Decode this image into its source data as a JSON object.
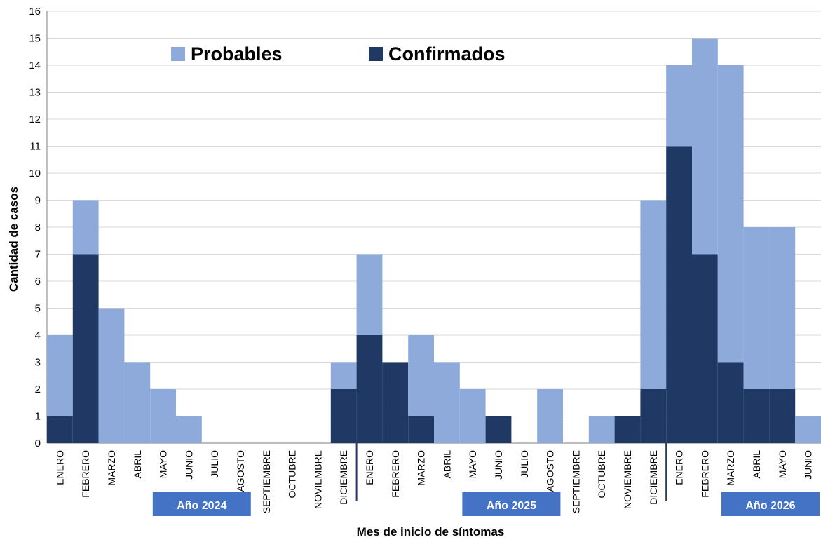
{
  "chart_data": {
    "type": "bar",
    "stacked": true,
    "xlabel": "Mes de inicio de síntomas",
    "ylabel": "Cantidad de casos",
    "ylim": [
      0,
      16
    ],
    "yticks": [
      0,
      1,
      2,
      3,
      4,
      5,
      6,
      7,
      8,
      9,
      10,
      11,
      12,
      13,
      14,
      15,
      16
    ],
    "grid": true,
    "legend_position": "top-left",
    "categories": [
      "ENERO",
      "FEBRERO",
      "MARZO",
      "ABRIL",
      "MAYO",
      "JUNIO",
      "JULIO",
      "AGOSTO",
      "SEPTIEMBRE",
      "OCTUBRE",
      "NOVIEMBRE",
      "DICIEMBRE",
      "ENERO",
      "FEBRERO",
      "MARZO",
      "ABRIL",
      "MAYO",
      "JUNIO",
      "JULIO",
      "AGOSTO",
      "SEPTIEMBRE",
      "OCTUBRE",
      "NOVIEMBRE",
      "DICIEMBRE",
      "ENERO",
      "FEBRERO",
      "MARZO",
      "ABRIL",
      "MAYO",
      "JUNIO"
    ],
    "years": [
      {
        "label": "Año 2024",
        "start": 0,
        "end": 11
      },
      {
        "label": "Año 2025",
        "start": 12,
        "end": 23
      },
      {
        "label": "Año 2026",
        "start": 24,
        "end": 29
      }
    ],
    "series": [
      {
        "name": "Confirmados",
        "color": "#1f3864",
        "values": [
          1,
          7,
          0,
          0,
          0,
          0,
          0,
          0,
          0,
          0,
          0,
          2,
          4,
          3,
          1,
          0,
          0,
          1,
          0,
          0,
          0,
          0,
          1,
          2,
          11,
          7,
          3,
          2,
          2,
          0
        ]
      },
      {
        "name": "Probables",
        "color": "#8eaadb",
        "values": [
          3,
          2,
          5,
          3,
          2,
          1,
          0,
          0,
          0,
          0,
          0,
          1,
          3,
          0,
          3,
          3,
          2,
          0,
          0,
          2,
          0,
          1,
          0,
          7,
          3,
          8,
          11,
          6,
          6,
          1
        ]
      }
    ]
  }
}
